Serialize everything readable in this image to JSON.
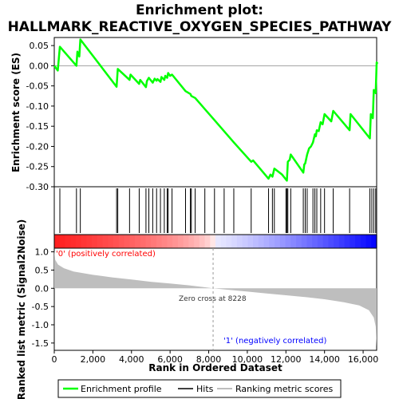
{
  "chart_data": [
    {
      "type": "line",
      "title_line1": "Enrichment plot:",
      "title_line2": "HALLMARK_REACTIVE_OXYGEN_SPECIES_PATHWAY",
      "ylabel": "Enrichment score (ES)",
      "xlim": [
        0,
        16700
      ],
      "ylim": [
        -0.3,
        0.07
      ],
      "yticks": [
        0.05,
        0.0,
        -0.05,
        -0.1,
        -0.15,
        -0.2,
        -0.25,
        -0.3
      ],
      "ytick_labels": [
        "0.05",
        "0.00",
        "-0.05",
        "-0.10",
        "-0.15",
        "-0.20",
        "-0.25",
        "-0.30"
      ],
      "line_color": "#00ff00",
      "series": [
        {
          "name": "Enrichment profile",
          "points": [
            [
              0,
              0.0
            ],
            [
              180,
              -0.012
            ],
            [
              290,
              0.047
            ],
            [
              1150,
              0.0
            ],
            [
              1200,
              0.035
            ],
            [
              1300,
              0.023
            ],
            [
              1350,
              0.065
            ],
            [
              3230,
              -0.052
            ],
            [
              3290,
              -0.008
            ],
            [
              3900,
              -0.035
            ],
            [
              3950,
              -0.022
            ],
            [
              4400,
              -0.045
            ],
            [
              4450,
              -0.035
            ],
            [
              4750,
              -0.053
            ],
            [
              4800,
              -0.038
            ],
            [
              4900,
              -0.03
            ],
            [
              5100,
              -0.042
            ],
            [
              5200,
              -0.032
            ],
            [
              5300,
              -0.037
            ],
            [
              5350,
              -0.033
            ],
            [
              5500,
              -0.04
            ],
            [
              5550,
              -0.028
            ],
            [
              5700,
              -0.035
            ],
            [
              5750,
              -0.025
            ],
            [
              5850,
              -0.03
            ],
            [
              5900,
              -0.018
            ],
            [
              6000,
              -0.025
            ],
            [
              6100,
              -0.022
            ],
            [
              6800,
              -0.063
            ],
            [
              7050,
              -0.07
            ],
            [
              7100,
              -0.075
            ],
            [
              7300,
              -0.08
            ],
            [
              8300,
              -0.135
            ],
            [
              9300,
              -0.19
            ],
            [
              10200,
              -0.238
            ],
            [
              10300,
              -0.235
            ],
            [
              11100,
              -0.28
            ],
            [
              11200,
              -0.27
            ],
            [
              11300,
              -0.275
            ],
            [
              11400,
              -0.255
            ],
            [
              11800,
              -0.27
            ],
            [
              12050,
              -0.285
            ],
            [
              12100,
              -0.238
            ],
            [
              12200,
              -0.233
            ],
            [
              12250,
              -0.22
            ],
            [
              12900,
              -0.265
            ],
            [
              12950,
              -0.245
            ],
            [
              13000,
              -0.242
            ],
            [
              13100,
              -0.22
            ],
            [
              13200,
              -0.205
            ],
            [
              13300,
              -0.2
            ],
            [
              13400,
              -0.19
            ],
            [
              13500,
              -0.17
            ],
            [
              13550,
              -0.175
            ],
            [
              13600,
              -0.16
            ],
            [
              13700,
              -0.162
            ],
            [
              13800,
              -0.14
            ],
            [
              13900,
              -0.145
            ],
            [
              14000,
              -0.12
            ],
            [
              14350,
              -0.138
            ],
            [
              14450,
              -0.112
            ],
            [
              15300,
              -0.16
            ],
            [
              15350,
              -0.12
            ],
            [
              16350,
              -0.18
            ],
            [
              16400,
              -0.12
            ],
            [
              16500,
              -0.13
            ],
            [
              16550,
              -0.06
            ],
            [
              16650,
              -0.068
            ],
            [
              16700,
              0.008
            ],
            [
              16750,
              0.005
            ]
          ]
        }
      ],
      "hits": [
        290,
        1150,
        1350,
        3230,
        3290,
        3900,
        4400,
        4750,
        4900,
        5100,
        5300,
        5500,
        5700,
        5850,
        5900,
        6100,
        6800,
        7050,
        7100,
        7300,
        7800,
        8300,
        8800,
        9300,
        10200,
        11100,
        11300,
        11400,
        12000,
        12050,
        12100,
        12250,
        12900,
        13000,
        13100,
        13400,
        13500,
        13600,
        13800,
        14000,
        14450,
        15300,
        16350,
        16450,
        16550,
        16650
      ],
      "ranking_labels": {
        "positive": "'0' (positively correlated)",
        "negative": "'1' (negatively correlated)",
        "positive_color": "#ff0000",
        "negative_color": "#0000ff"
      }
    },
    {
      "type": "area",
      "ylabel": "Ranked list metric (Signal2Noise)",
      "xlabel": "Rank in Ordered Dataset",
      "xlim": [
        0,
        16700
      ],
      "ylim": [
        -1.7,
        1.1
      ],
      "yticks": [
        1.0,
        0.5,
        0.0,
        -0.5,
        -1.0,
        -1.5
      ],
      "ytick_labels": [
        "1.0",
        "0.5",
        "0.0",
        "-0.5",
        "-1.0",
        "-1.5"
      ],
      "xticks": [
        0,
        2000,
        4000,
        6000,
        8000,
        10000,
        12000,
        14000,
        16000
      ],
      "xtick_labels": [
        "0",
        "2,000",
        "4,000",
        "6,000",
        "8,000",
        "10,000",
        "12,000",
        "14,000",
        "16,000"
      ],
      "fill_color": "#bebebe",
      "zero_cross_label": "Zero cross at 8228",
      "zero_cross": 8228,
      "series": [
        {
          "name": "Ranking metric scores",
          "points": [
            [
              0,
              1.05
            ],
            [
              50,
              0.78
            ],
            [
              200,
              0.65
            ],
            [
              500,
              0.55
            ],
            [
              1000,
              0.46
            ],
            [
              2000,
              0.37
            ],
            [
              3000,
              0.3
            ],
            [
              4000,
              0.24
            ],
            [
              5000,
              0.18
            ],
            [
              6000,
              0.13
            ],
            [
              7000,
              0.08
            ],
            [
              8228,
              0.0
            ],
            [
              9000,
              -0.04
            ],
            [
              10000,
              -0.09
            ],
            [
              11000,
              -0.14
            ],
            [
              12000,
              -0.19
            ],
            [
              13000,
              -0.24
            ],
            [
              14000,
              -0.3
            ],
            [
              15000,
              -0.38
            ],
            [
              15800,
              -0.47
            ],
            [
              16300,
              -0.6
            ],
            [
              16550,
              -0.8
            ],
            [
              16650,
              -1.05
            ],
            [
              16700,
              -1.6
            ]
          ]
        }
      ]
    }
  ],
  "legend": {
    "items": [
      {
        "label": "Enrichment profile",
        "color": "#00ff00"
      },
      {
        "label": "Hits",
        "color": "#000000"
      },
      {
        "label": "Ranking metric scores",
        "color": "#bebebe"
      }
    ]
  }
}
